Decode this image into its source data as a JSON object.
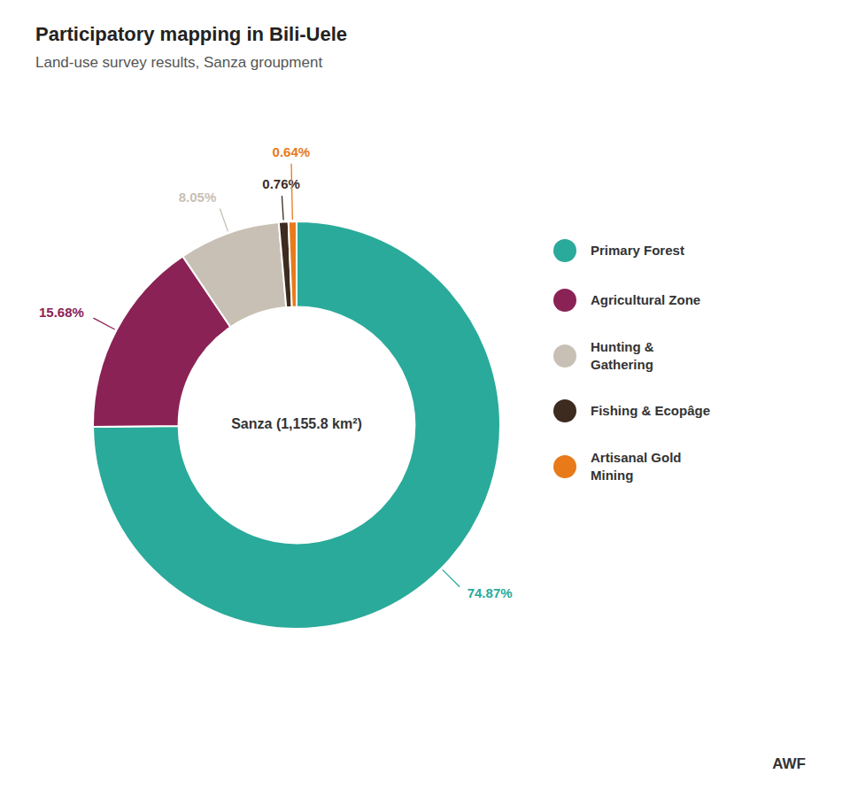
{
  "chart_data": {
    "type": "donut",
    "title": "Participatory mapping in Bili-Uele",
    "subtitle": "Land-use survey results, Sanza groupment",
    "categories": [
      "Primary Forest",
      "Agricultural Zone",
      "Hunting &\nGathering",
      "Fishing & Ecopâge",
      "Artisanal Gold\nMining"
    ],
    "values": [
      74.87,
      15.68,
      8.05,
      0.76,
      0.64
    ],
    "value_labels": [
      "74.87%",
      "15.68%",
      "8.05%",
      "0.76%",
      "0.64%"
    ],
    "colors": [
      "#2aaa9a",
      "#8b2255",
      "#c8c0b4",
      "#3d2b1f",
      "#e87a1a"
    ],
    "data_labels": true,
    "legend": "right",
    "annotations": [
      "Sanza (1,155.8 km²)",
      "AWF"
    ]
  }
}
